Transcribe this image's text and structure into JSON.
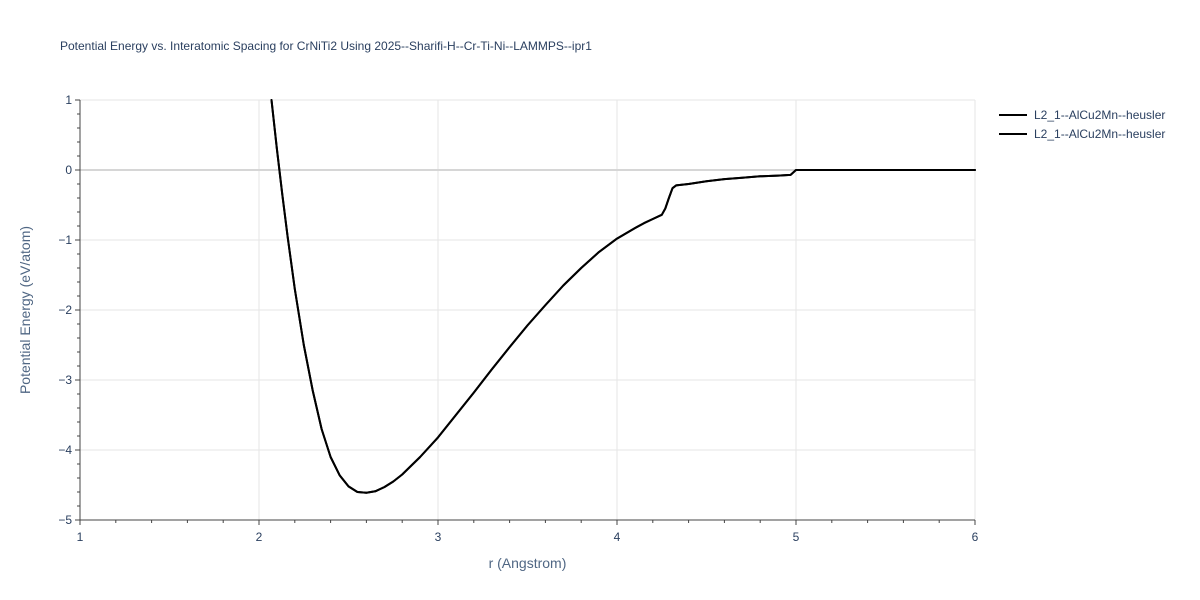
{
  "chart_data": {
    "type": "line",
    "title": "Potential Energy vs. Interatomic Spacing for CrNiTi2 Using 2025--Sharifi-H--Cr-Ti-Ni--LAMMPS--ipr1",
    "xlabel": "r (Angstrom)",
    "ylabel": "Potential Energy (eV/atom)",
    "xlim": [
      1,
      6
    ],
    "ylim": [
      -5,
      1
    ],
    "x_ticks": [
      1,
      2,
      3,
      4,
      5,
      6
    ],
    "y_ticks": [
      1,
      0,
      -1,
      -2,
      -3,
      -4,
      -5
    ],
    "x_tick_labels": [
      "1",
      "2",
      "3",
      "4",
      "5",
      "6"
    ],
    "y_tick_labels": [
      "1",
      "0",
      "−1",
      "−2",
      "−3",
      "−4",
      "−5"
    ],
    "grid": true,
    "legend_position": "top-right",
    "series": [
      {
        "name": "L2_1--AlCu2Mn--heusler",
        "color": "#000000",
        "x": [
          2.07,
          2.1,
          2.13,
          2.16,
          2.2,
          2.25,
          2.3,
          2.35,
          2.4,
          2.45,
          2.5,
          2.55,
          2.6,
          2.65,
          2.7,
          2.75,
          2.8,
          2.9,
          3.0,
          3.1,
          3.2,
          3.3,
          3.4,
          3.5,
          3.6,
          3.7,
          3.8,
          3.9,
          4.0,
          4.1,
          4.15,
          4.2,
          4.25,
          4.27,
          4.29,
          4.31,
          4.33,
          4.4,
          4.5,
          4.6,
          4.7,
          4.8,
          4.9,
          4.97,
          5.0,
          5.5,
          6.0
        ],
        "y": [
          1.0,
          0.3,
          -0.35,
          -0.95,
          -1.7,
          -2.5,
          -3.15,
          -3.7,
          -4.1,
          -4.36,
          -4.52,
          -4.6,
          -4.61,
          -4.59,
          -4.53,
          -4.45,
          -4.35,
          -4.1,
          -3.82,
          -3.5,
          -3.18,
          -2.85,
          -2.53,
          -2.22,
          -1.93,
          -1.65,
          -1.4,
          -1.17,
          -0.98,
          -0.83,
          -0.76,
          -0.7,
          -0.64,
          -0.55,
          -0.4,
          -0.26,
          -0.22,
          -0.2,
          -0.16,
          -0.13,
          -0.11,
          -0.09,
          -0.08,
          -0.07,
          0.0,
          0.0,
          0.0
        ]
      },
      {
        "name": "L2_1--AlCu2Mn--heusler",
        "color": "#000000",
        "x": [
          2.07,
          2.1,
          2.13,
          2.16,
          2.2,
          2.25,
          2.3,
          2.35,
          2.4,
          2.45,
          2.5,
          2.55,
          2.6,
          2.65,
          2.7,
          2.75,
          2.8,
          2.9,
          3.0,
          3.1,
          3.2,
          3.3,
          3.4,
          3.5,
          3.6,
          3.7,
          3.8,
          3.9,
          4.0,
          4.1,
          4.15,
          4.2,
          4.25,
          4.27,
          4.29,
          4.31,
          4.33,
          4.4,
          4.5,
          4.6,
          4.7,
          4.8,
          4.9,
          4.97,
          5.0,
          5.5,
          6.0
        ],
        "y": [
          1.0,
          0.3,
          -0.35,
          -0.95,
          -1.7,
          -2.5,
          -3.15,
          -3.7,
          -4.1,
          -4.36,
          -4.52,
          -4.6,
          -4.61,
          -4.59,
          -4.53,
          -4.45,
          -4.35,
          -4.1,
          -3.82,
          -3.5,
          -3.18,
          -2.85,
          -2.53,
          -2.22,
          -1.93,
          -1.65,
          -1.4,
          -1.17,
          -0.98,
          -0.83,
          -0.76,
          -0.7,
          -0.64,
          -0.55,
          -0.4,
          -0.26,
          -0.22,
          -0.2,
          -0.16,
          -0.13,
          -0.11,
          -0.09,
          -0.08,
          -0.07,
          0.0,
          0.0,
          0.0
        ]
      }
    ]
  }
}
